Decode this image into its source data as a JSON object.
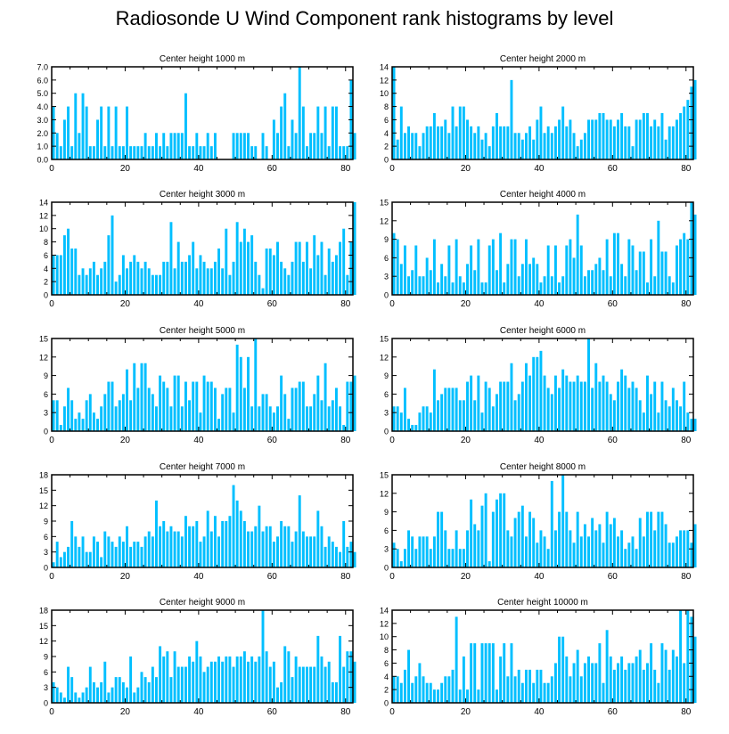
{
  "figure": {
    "title": "Radiosonde U Wind Component rank histograms by level",
    "bar_color": "#00bfff"
  },
  "chart_data": [
    {
      "type": "bar",
      "title": "Center height 1000 m",
      "xlim": [
        0,
        82
      ],
      "ylim": [
        0,
        7
      ],
      "xticks": [
        0,
        20,
        40,
        60,
        80
      ],
      "yticks": [
        "0.0",
        "1.0",
        "2.0",
        "3.0",
        "4.0",
        "5.0",
        "6.0",
        "7.0"
      ],
      "values": [
        4,
        2,
        1,
        3,
        4,
        1,
        5,
        2,
        5,
        4,
        1,
        1,
        3,
        4,
        1,
        4,
        1,
        4,
        1,
        1,
        4,
        1,
        1,
        1,
        1,
        2,
        1,
        1,
        2,
        1,
        2,
        1,
        2,
        2,
        2,
        2,
        5,
        1,
        1,
        2,
        1,
        1,
        2,
        1,
        2,
        0,
        0,
        0,
        0,
        2,
        2,
        2,
        2,
        2,
        1,
        1,
        0,
        2,
        1,
        0,
        3,
        2,
        4,
        5,
        1,
        3,
        2,
        7,
        4,
        1,
        2,
        2,
        4,
        2,
        4,
        1,
        4,
        4,
        1,
        1,
        1,
        6,
        2
      ]
    },
    {
      "type": "bar",
      "title": "Center height 2000 m",
      "xlim": [
        0,
        82
      ],
      "ylim": [
        0,
        14
      ],
      "xticks": [
        0,
        20,
        40,
        60,
        80
      ],
      "yticks": [
        "0",
        "2",
        "4",
        "6",
        "8",
        "10",
        "12",
        "14"
      ],
      "values": [
        14,
        3,
        8,
        4,
        5,
        4,
        4,
        2,
        4,
        5,
        5,
        7,
        5,
        5,
        6,
        4,
        8,
        5,
        8,
        8,
        6,
        5,
        4,
        5,
        3,
        4,
        2,
        5,
        7,
        5,
        5,
        5,
        12,
        4,
        4,
        3,
        4,
        5,
        3,
        6,
        8,
        4,
        5,
        4,
        5,
        6,
        8,
        5,
        6,
        4,
        2,
        3,
        4,
        6,
        6,
        6,
        7,
        7,
        6,
        6,
        5,
        6,
        7,
        5,
        5,
        2,
        6,
        6,
        7,
        7,
        5,
        6,
        5,
        7,
        3,
        5,
        5,
        6,
        7,
        8,
        9,
        11,
        12
      ]
    },
    {
      "type": "bar",
      "title": "Center height 3000 m",
      "xlim": [
        0,
        82
      ],
      "ylim": [
        0,
        14
      ],
      "xticks": [
        0,
        20,
        40,
        60,
        80
      ],
      "yticks": [
        "0",
        "2",
        "4",
        "6",
        "8",
        "10",
        "12",
        "14"
      ],
      "values": [
        6,
        6,
        6,
        9,
        10,
        7,
        7,
        3,
        4,
        3,
        4,
        5,
        3,
        4,
        5,
        9,
        12,
        2,
        3,
        6,
        4,
        5,
        6,
        5,
        4,
        5,
        4,
        3,
        3,
        3,
        5,
        5,
        11,
        4,
        8,
        5,
        5,
        6,
        8,
        4,
        6,
        5,
        4,
        4,
        5,
        7,
        4,
        10,
        3,
        5,
        11,
        8,
        10,
        8,
        9,
        5,
        3,
        1,
        7,
        7,
        6,
        8,
        5,
        4,
        3,
        5,
        8,
        8,
        5,
        8,
        4,
        9,
        6,
        8,
        3,
        7,
        5,
        6,
        8,
        10,
        3,
        8,
        14
      ]
    },
    {
      "type": "bar",
      "title": "Center height 4000 m",
      "xlim": [
        0,
        82
      ],
      "ylim": [
        0,
        15
      ],
      "xticks": [
        0,
        20,
        40,
        60,
        80
      ],
      "yticks": [
        "0",
        "3",
        "6",
        "9",
        "12",
        "15"
      ],
      "values": [
        10,
        9,
        5,
        8,
        3,
        4,
        8,
        3,
        3,
        6,
        4,
        9,
        2,
        5,
        3,
        8,
        2,
        9,
        3,
        2,
        5,
        8,
        4,
        9,
        2,
        2,
        8,
        9,
        4,
        10,
        2,
        5,
        9,
        9,
        3,
        5,
        9,
        5,
        6,
        5,
        2,
        3,
        8,
        3,
        8,
        2,
        3,
        8,
        9,
        6,
        13,
        8,
        3,
        4,
        4,
        5,
        6,
        4,
        9,
        3,
        10,
        10,
        5,
        3,
        9,
        8,
        4,
        7,
        7,
        2,
        9,
        3,
        12,
        7,
        7,
        3,
        2,
        8,
        9,
        10,
        9,
        15,
        13
      ]
    },
    {
      "type": "bar",
      "title": "Center height 5000 m",
      "xlim": [
        0,
        82
      ],
      "ylim": [
        0,
        15
      ],
      "xticks": [
        0,
        20,
        40,
        60,
        80
      ],
      "yticks": [
        "0",
        "3",
        "6",
        "9",
        "12",
        "15"
      ],
      "values": [
        5,
        5,
        1,
        4,
        7,
        5,
        2,
        3,
        2,
        5,
        6,
        3,
        2,
        4,
        6,
        8,
        8,
        4,
        5,
        6,
        10,
        5,
        11,
        7,
        11,
        11,
        7,
        6,
        4,
        9,
        8,
        7,
        4,
        9,
        9,
        4,
        8,
        5,
        8,
        8,
        3,
        9,
        8,
        8,
        7,
        2,
        6,
        7,
        7,
        3,
        14,
        12,
        7,
        12,
        4,
        15,
        4,
        6,
        6,
        4,
        3,
        4,
        9,
        6,
        2,
        7,
        7,
        8,
        8,
        4,
        4,
        6,
        9,
        5,
        11,
        4,
        5,
        7,
        4,
        1,
        8,
        8,
        9
      ]
    },
    {
      "type": "bar",
      "title": "Center height 6000 m",
      "xlim": [
        0,
        82
      ],
      "ylim": [
        0,
        15
      ],
      "xticks": [
        0,
        20,
        40,
        60,
        80
      ],
      "yticks": [
        "0",
        "3",
        "6",
        "9",
        "12",
        "15"
      ],
      "values": [
        4,
        4,
        3,
        7,
        2,
        1,
        1,
        3,
        4,
        4,
        3,
        10,
        5,
        6,
        7,
        7,
        7,
        7,
        5,
        5,
        8,
        9,
        5,
        9,
        3,
        8,
        7,
        4,
        6,
        8,
        8,
        8,
        11,
        5,
        6,
        8,
        11,
        9,
        12,
        12,
        13,
        9,
        7,
        6,
        9,
        7,
        10,
        9,
        8,
        8,
        9,
        8,
        8,
        15,
        7,
        11,
        8,
        9,
        8,
        6,
        5,
        8,
        10,
        9,
        7,
        8,
        7,
        5,
        3,
        9,
        6,
        8,
        3,
        8,
        5,
        4,
        7,
        5,
        4,
        8,
        3,
        2,
        2
      ]
    },
    {
      "type": "bar",
      "title": "Center height 7000 m",
      "xlim": [
        0,
        82
      ],
      "ylim": [
        0,
        18
      ],
      "xticks": [
        0,
        20,
        40,
        60,
        80
      ],
      "yticks": [
        "0",
        "3",
        "6",
        "9",
        "12",
        "15",
        "18"
      ],
      "values": [
        1,
        5,
        2,
        3,
        4,
        9,
        6,
        4,
        6,
        3,
        3,
        6,
        5,
        2,
        7,
        6,
        5,
        4,
        6,
        5,
        8,
        4,
        5,
        5,
        4,
        6,
        7,
        6,
        13,
        8,
        9,
        7,
        8,
        7,
        7,
        6,
        10,
        8,
        8,
        9,
        5,
        6,
        11,
        7,
        10,
        6,
        9,
        9,
        10,
        16,
        13,
        11,
        9,
        7,
        7,
        8,
        12,
        7,
        8,
        8,
        5,
        6,
        9,
        8,
        8,
        5,
        7,
        14,
        7,
        6,
        6,
        6,
        11,
        8,
        4,
        6,
        5,
        4,
        3,
        9,
        4,
        5,
        3
      ]
    },
    {
      "type": "bar",
      "title": "Center height 8000 m",
      "xlim": [
        0,
        82
      ],
      "ylim": [
        0,
        15
      ],
      "xticks": [
        0,
        20,
        40,
        60,
        80
      ],
      "yticks": [
        "0",
        "3",
        "6",
        "9",
        "12",
        "15"
      ],
      "values": [
        4,
        3,
        1,
        3,
        6,
        5,
        3,
        5,
        5,
        5,
        3,
        5,
        9,
        9,
        6,
        3,
        3,
        6,
        3,
        3,
        6,
        11,
        7,
        6,
        10,
        12,
        1,
        9,
        11,
        12,
        12,
        6,
        5,
        8,
        9,
        10,
        5,
        9,
        8,
        4,
        6,
        5,
        3,
        14,
        6,
        9,
        15,
        9,
        6,
        4,
        9,
        5,
        7,
        5,
        8,
        6,
        7,
        4,
        9,
        7,
        8,
        5,
        6,
        3,
        4,
        5,
        3,
        8,
        5,
        9,
        9,
        6,
        9,
        9,
        7,
        4,
        4,
        5,
        6,
        6,
        6,
        4,
        7
      ]
    },
    {
      "type": "bar",
      "title": "Center height 9000 m",
      "xlim": [
        0,
        82
      ],
      "ylim": [
        0,
        18
      ],
      "xticks": [
        0,
        20,
        40,
        60,
        80
      ],
      "yticks": [
        "0",
        "3",
        "6",
        "9",
        "12",
        "15",
        "18"
      ],
      "values": [
        4,
        3,
        2,
        1,
        7,
        5,
        2,
        1,
        2,
        3,
        7,
        4,
        3,
        4,
        8,
        2,
        3,
        5,
        5,
        4,
        3,
        9,
        2,
        3,
        6,
        5,
        4,
        7,
        5,
        11,
        9,
        10,
        5,
        10,
        7,
        7,
        7,
        9,
        8,
        12,
        9,
        6,
        7,
        8,
        8,
        9,
        8,
        9,
        9,
        7,
        9,
        9,
        10,
        8,
        9,
        8,
        9,
        18,
        10,
        7,
        8,
        3,
        4,
        11,
        10,
        5,
        9,
        7,
        7,
        7,
        7,
        7,
        13,
        9,
        7,
        8,
        4,
        4,
        13,
        7,
        10,
        10,
        8
      ]
    },
    {
      "type": "bar",
      "title": "Center height 10000 m",
      "xlim": [
        0,
        82
      ],
      "ylim": [
        0,
        14
      ],
      "xticks": [
        0,
        20,
        40,
        60,
        80
      ],
      "yticks": [
        "0",
        "2",
        "4",
        "6",
        "8",
        "10",
        "12",
        "14"
      ],
      "values": [
        4,
        4,
        3,
        5,
        8,
        3,
        4,
        6,
        4,
        3,
        3,
        2,
        2,
        3,
        4,
        4,
        5,
        13,
        2,
        7,
        2,
        9,
        9,
        2,
        9,
        9,
        9,
        9,
        2,
        7,
        9,
        4,
        9,
        4,
        5,
        3,
        5,
        5,
        3,
        5,
        5,
        3,
        3,
        4,
        6,
        10,
        10,
        7,
        4,
        6,
        8,
        4,
        6,
        7,
        6,
        6,
        9,
        3,
        11,
        7,
        5,
        6,
        7,
        5,
        6,
        6,
        7,
        8,
        5,
        6,
        9,
        5,
        3,
        9,
        8,
        5,
        8,
        7,
        14,
        6,
        14,
        13,
        10
      ]
    }
  ]
}
